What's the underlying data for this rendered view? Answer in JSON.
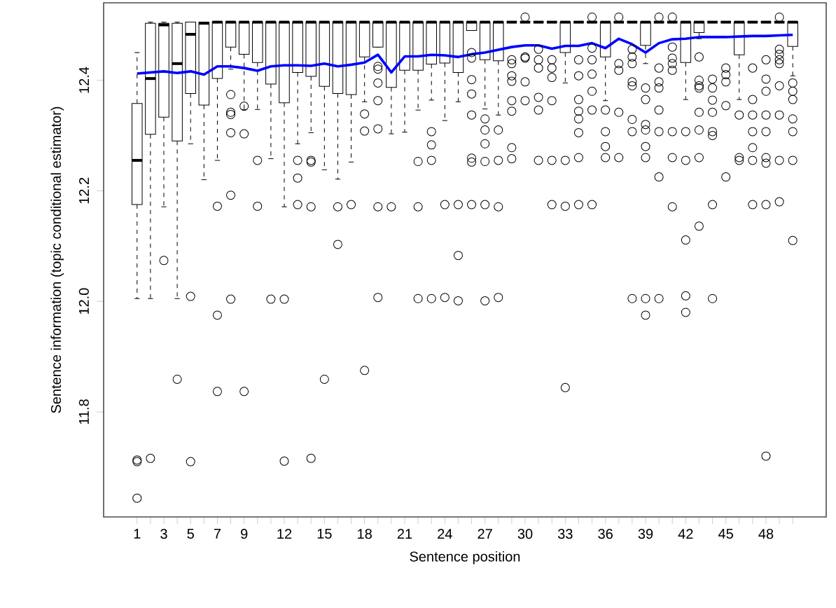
{
  "chart_data": {
    "type": "box",
    "xlabel": "Sentence position",
    "ylabel": "Sentence information (topic conditional estimator)",
    "categories": [
      "1",
      null,
      "3",
      null,
      "5",
      null,
      "7",
      null,
      "9",
      null,
      null,
      "12",
      null,
      null,
      "15",
      null,
      null,
      "18",
      null,
      null,
      "21",
      null,
      null,
      "24",
      null,
      null,
      "27",
      null,
      null,
      "30",
      null,
      null,
      "33",
      null,
      null,
      "36",
      null,
      null,
      "39",
      null,
      null,
      "42",
      null,
      null,
      "45",
      null,
      null,
      "48",
      null,
      null
    ],
    "ylim": [
      11.61,
      12.54
    ],
    "yticks": [
      11.8,
      {
        "value": 12.0,
        "label": "12.0"
      },
      12.2,
      12.4
    ],
    "grid": false,
    "series": [
      {
        "color": "#000000",
        "boxes": [
          {
            "low": 12.005,
            "q1": 12.175,
            "median": 12.255,
            "q3": 12.358,
            "high": 12.45,
            "outliers": [
              11.713,
              11.71,
              11.644
            ]
          },
          {
            "low": 12.005,
            "q1": 12.302,
            "median": 12.403,
            "q3": 12.503,
            "high": 12.505,
            "outliers": [
              11.716
            ]
          },
          {
            "low": 12.171,
            "q1": 12.333,
            "median": 12.5,
            "q3": 12.503,
            "high": 12.505,
            "outliers": [
              12.074
            ]
          },
          {
            "low": 12.005,
            "q1": 12.29,
            "median": 12.43,
            "q3": 12.503,
            "high": 12.505,
            "outliers": [
              11.859
            ]
          },
          {
            "low": 12.285,
            "q1": 12.376,
            "median": 12.483,
            "q3": 12.505,
            "high": 12.505,
            "outliers": [
              12.009,
              11.71
            ]
          },
          {
            "low": 12.22,
            "q1": 12.355,
            "median": 12.503,
            "q3": 12.505,
            "high": 12.505
          },
          {
            "low": 12.255,
            "q1": 12.403,
            "median": 12.505,
            "q3": 12.505,
            "high": 12.505,
            "outliers": [
              12.172,
              11.975,
              11.837
            ]
          },
          {
            "low": 12.42,
            "q1": 12.46,
            "median": 12.505,
            "q3": 12.505,
            "high": 12.505,
            "outliers": [
              12.374,
              12.342,
              12.338,
              12.305,
              12.192,
              12.004
            ]
          },
          {
            "low": 12.347,
            "q1": 12.447,
            "median": 12.505,
            "q3": 12.505,
            "high": 12.505,
            "outliers": [
              12.353,
              12.303,
              11.837
            ]
          },
          {
            "low": 12.347,
            "q1": 12.432,
            "median": 12.505,
            "q3": 12.505,
            "high": 12.505,
            "outliers": [
              12.255,
              12.172
            ]
          },
          {
            "low": 12.258,
            "q1": 12.393,
            "median": 12.505,
            "q3": 12.505,
            "high": 12.505,
            "outliers": [
              12.004
            ]
          },
          {
            "low": 12.171,
            "q1": 12.359,
            "median": 12.505,
            "q3": 12.505,
            "high": 12.505,
            "outliers": [
              12.004,
              11.711
            ]
          },
          {
            "low": 12.285,
            "q1": 12.414,
            "median": 12.505,
            "q3": 12.505,
            "high": 12.505,
            "outliers": [
              12.255,
              12.223,
              12.175
            ]
          },
          {
            "low": 12.305,
            "q1": 12.407,
            "median": 12.505,
            "q3": 12.505,
            "high": 12.505,
            "outliers": [
              12.255,
              12.252,
              12.171,
              11.716
            ]
          },
          {
            "low": 12.238,
            "q1": 12.389,
            "median": 12.505,
            "q3": 12.505,
            "high": 12.505,
            "outliers": [
              11.859
            ]
          },
          {
            "low": 12.221,
            "q1": 12.376,
            "median": 12.505,
            "q3": 12.505,
            "high": 12.505,
            "outliers": [
              12.171,
              12.103
            ]
          },
          {
            "low": 12.252,
            "q1": 12.374,
            "median": 12.505,
            "q3": 12.505,
            "high": 12.505,
            "outliers": [
              12.175
            ]
          },
          {
            "low": 12.361,
            "q1": 12.442,
            "median": 12.505,
            "q3": 12.505,
            "high": 12.505,
            "outliers": [
              12.339,
              12.308,
              11.875
            ]
          },
          {
            "low": 12.46,
            "q1": 12.46,
            "median": 12.505,
            "q3": 12.505,
            "high": 12.505,
            "outliers": [
              12.425,
              12.42,
              12.395,
              12.363,
              12.312,
              12.171,
              12.007
            ]
          },
          {
            "low": 12.303,
            "q1": 12.387,
            "median": 12.505,
            "q3": 12.505,
            "high": 12.505,
            "outliers": [
              12.171
            ]
          },
          {
            "low": 12.306,
            "q1": 12.418,
            "median": 12.505,
            "q3": 12.505,
            "high": 12.505
          },
          {
            "low": 12.346,
            "q1": 12.418,
            "median": 12.505,
            "q3": 12.505,
            "high": 12.505,
            "outliers": [
              12.253,
              12.171,
              12.005
            ]
          },
          {
            "low": 12.364,
            "q1": 12.429,
            "median": 12.505,
            "q3": 12.505,
            "high": 12.505,
            "outliers": [
              12.307,
              12.283,
              12.255,
              12.005
            ]
          },
          {
            "low": 12.327,
            "q1": 12.431,
            "median": 12.505,
            "q3": 12.505,
            "high": 12.505,
            "outliers": [
              12.175,
              12.007
            ]
          },
          {
            "low": 12.361,
            "q1": 12.414,
            "median": 12.505,
            "q3": 12.505,
            "high": 12.505,
            "outliers": [
              12.175,
              12.083,
              12.001
            ]
          },
          {
            "low": 12.49,
            "q1": 12.49,
            "median": 12.505,
            "q3": 12.505,
            "high": 12.505,
            "outliers": [
              12.45,
              12.44,
              12.401,
              12.375,
              12.337,
              12.259,
              12.252,
              12.175
            ]
          },
          {
            "low": 12.348,
            "q1": 12.437,
            "median": 12.505,
            "q3": 12.505,
            "high": 12.505,
            "outliers": [
              12.33,
              12.31,
              12.285,
              12.253,
              12.175,
              12.001
            ]
          },
          {
            "low": 12.337,
            "q1": 12.435,
            "median": 12.505,
            "q3": 12.505,
            "high": 12.505,
            "outliers": [
              12.31,
              12.255,
              12.171,
              12.007
            ]
          },
          {
            "low": 12.505,
            "q1": 12.505,
            "median": 12.505,
            "q3": 12.505,
            "high": 12.505,
            "outliers": [
              12.437,
              12.43,
              12.408,
              12.398,
              12.363,
              12.344,
              12.278,
              12.258
            ]
          },
          {
            "low": 12.505,
            "q1": 12.505,
            "median": 12.505,
            "q3": 12.505,
            "high": 12.505,
            "outliers": [
              12.514,
              12.442,
              12.44,
              12.397,
              12.363
            ]
          },
          {
            "low": 12.505,
            "q1": 12.505,
            "median": 12.505,
            "q3": 12.505,
            "high": 12.505,
            "outliers": [
              12.456,
              12.437,
              12.422,
              12.369,
              12.346,
              12.255
            ]
          },
          {
            "low": 12.505,
            "q1": 12.505,
            "median": 12.505,
            "q3": 12.505,
            "high": 12.505,
            "outliers": [
              12.437,
              12.422,
              12.405,
              12.363,
              12.255,
              12.175
            ]
          },
          {
            "low": 12.395,
            "q1": 12.45,
            "median": 12.505,
            "q3": 12.505,
            "high": 12.505,
            "outliers": [
              12.255,
              12.172,
              11.844
            ]
          },
          {
            "low": 12.505,
            "q1": 12.505,
            "median": 12.505,
            "q3": 12.505,
            "high": 12.505,
            "outliers": [
              12.437,
              12.408,
              12.365,
              12.344,
              12.33,
              12.305,
              12.26,
              12.175
            ]
          },
          {
            "low": 12.505,
            "q1": 12.505,
            "median": 12.505,
            "q3": 12.505,
            "high": 12.505,
            "outliers": [
              12.514,
              12.458,
              12.437,
              12.411,
              12.38,
              12.346,
              12.175
            ]
          },
          {
            "low": 12.363,
            "q1": 12.442,
            "median": 12.505,
            "q3": 12.505,
            "high": 12.505,
            "outliers": [
              12.346,
              12.307,
              12.28,
              12.26
            ]
          },
          {
            "low": 12.505,
            "q1": 12.505,
            "median": 12.505,
            "q3": 12.505,
            "high": 12.505,
            "outliers": [
              12.514,
              12.43,
              12.418,
              12.342,
              12.26
            ]
          },
          {
            "low": 12.505,
            "q1": 12.505,
            "median": 12.505,
            "q3": 12.505,
            "high": 12.505,
            "outliers": [
              12.456,
              12.442,
              12.43,
              12.397,
              12.39,
              12.329,
              12.307,
              12.005
            ]
          },
          {
            "low": 12.43,
            "q1": 12.463,
            "median": 12.505,
            "q3": 12.505,
            "high": 12.505,
            "outliers": [
              12.386,
              12.365,
              12.32,
              12.31,
              12.28,
              12.26,
              12.005,
              11.975
            ]
          },
          {
            "low": 12.505,
            "q1": 12.505,
            "median": 12.505,
            "q3": 12.505,
            "high": 12.505,
            "outliers": [
              12.514,
              12.422,
              12.397,
              12.386,
              12.346,
              12.307,
              12.225,
              12.005
            ]
          },
          {
            "low": 12.505,
            "q1": 12.505,
            "median": 12.505,
            "q3": 12.505,
            "high": 12.505,
            "outliers": [
              12.514,
              12.46,
              12.44,
              12.43,
              12.418,
              12.307,
              12.26,
              12.171
            ]
          },
          {
            "low": 12.365,
            "q1": 12.432,
            "median": 12.505,
            "q3": 12.505,
            "high": 12.505,
            "outliers": [
              12.307,
              12.255,
              12.111,
              12.01,
              11.98
            ]
          },
          {
            "low": 12.475,
            "q1": 12.486,
            "median": 12.505,
            "q3": 12.505,
            "high": 12.505,
            "outliers": [
              12.442,
              12.4,
              12.39,
              12.386,
              12.342,
              12.31,
              12.26,
              12.136
            ]
          },
          {
            "low": 12.505,
            "q1": 12.505,
            "median": 12.505,
            "q3": 12.505,
            "high": 12.505,
            "outliers": [
              12.402,
              12.386,
              12.364,
              12.342,
              12.307,
              12.3,
              12.175,
              12.005
            ]
          },
          {
            "low": 12.505,
            "q1": 12.505,
            "median": 12.505,
            "q3": 12.505,
            "high": 12.505,
            "outliers": [
              12.422,
              12.41,
              12.397,
              12.354,
              12.225
            ]
          },
          {
            "low": 12.365,
            "q1": 12.446,
            "median": 12.505,
            "q3": 12.505,
            "high": 12.505,
            "outliers": [
              12.337,
              12.26,
              12.255
            ]
          },
          {
            "low": 12.505,
            "q1": 12.505,
            "median": 12.505,
            "q3": 12.505,
            "high": 12.505,
            "outliers": [
              12.422,
              12.365,
              12.337,
              12.307,
              12.278,
              12.255,
              12.175
            ]
          },
          {
            "low": 12.505,
            "q1": 12.505,
            "median": 12.505,
            "q3": 12.505,
            "high": 12.505,
            "outliers": [
              12.437,
              12.402,
              12.38,
              12.337,
              12.307,
              12.26,
              12.25,
              12.175,
              11.72
            ]
          },
          {
            "low": 12.505,
            "q1": 12.505,
            "median": 12.505,
            "q3": 12.505,
            "high": 12.505,
            "outliers": [
              12.514,
              12.456,
              12.447,
              12.437,
              12.43,
              12.39,
              12.337,
              12.255,
              12.18
            ]
          },
          {
            "low": 12.408,
            "q1": 12.461,
            "median": 12.505,
            "q3": 12.505,
            "high": 12.505,
            "outliers": [
              12.395,
              12.38,
              12.365,
              12.33,
              12.307,
              12.255,
              12.11
            ]
          }
        ]
      },
      {
        "type": "line",
        "color": "#0000ff",
        "values": [
          12.412,
          12.414,
          12.416,
          12.413,
          12.416,
          12.41,
          12.425,
          12.425,
          12.422,
          12.417,
          12.425,
          12.427,
          12.427,
          12.426,
          12.43,
          12.425,
          12.428,
          12.432,
          12.446,
          12.414,
          12.443,
          12.443,
          12.446,
          12.445,
          12.442,
          12.447,
          12.45,
          12.455,
          12.46,
          12.463,
          12.463,
          12.457,
          12.462,
          12.462,
          12.467,
          12.458,
          12.475,
          12.465,
          12.45,
          12.467,
          12.474,
          12.475,
          12.478,
          12.478,
          12.478,
          12.479,
          12.48,
          12.48,
          12.481,
          12.482
        ]
      }
    ]
  }
}
